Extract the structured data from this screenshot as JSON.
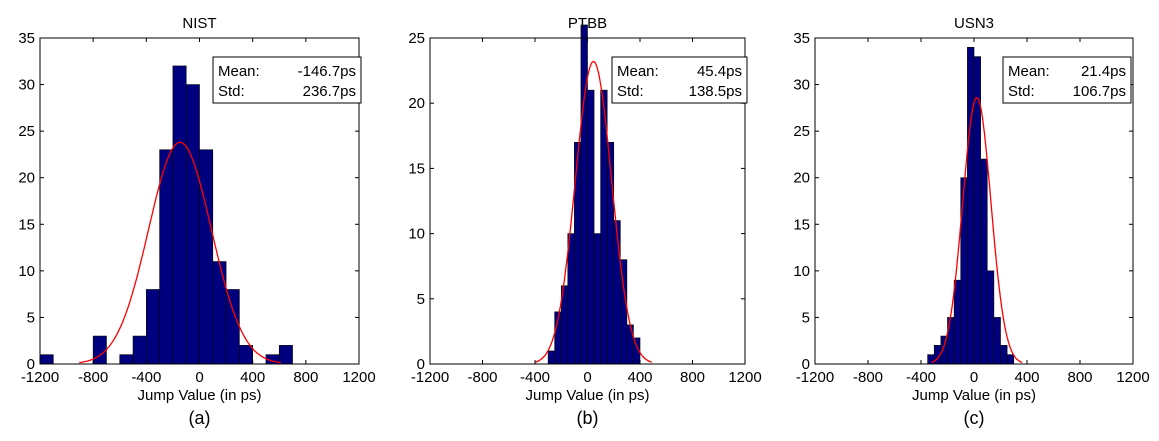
{
  "chart_data": [
    {
      "type": "bar",
      "title": "NIST",
      "xlabel": "Jump Value (in ps)",
      "ylabel": "",
      "panel_label": "(a)",
      "xlim": [
        -1200,
        1200
      ],
      "ylim": [
        0,
        35
      ],
      "xticks": [
        -1200,
        -800,
        -400,
        0,
        400,
        800,
        1200
      ],
      "yticks": [
        0,
        5,
        10,
        15,
        20,
        25,
        30,
        35
      ],
      "bin_edges": [
        -1200,
        -1100,
        -1000,
        -900,
        -800,
        -700,
        -600,
        -500,
        -400,
        -300,
        -200,
        -100,
        0,
        100,
        200,
        300,
        400,
        500,
        600,
        700,
        800,
        900,
        1000,
        1100,
        1200
      ],
      "values": [
        1,
        0,
        0,
        0,
        3,
        0,
        1,
        3,
        8,
        23,
        32,
        30,
        23,
        11,
        8,
        2,
        0,
        1,
        2,
        0,
        0,
        0,
        0,
        0
      ],
      "fit": {
        "mean": -146.7,
        "std": 236.7,
        "peak": 23.8
      },
      "stats": {
        "mean_label": "Mean:",
        "mean_value": "-146.7ps",
        "std_label": "Std:",
        "std_value": "236.7ps"
      },
      "grid": false,
      "colors": {
        "bar": "#00007f",
        "fit": "#ff0000"
      }
    },
    {
      "type": "bar",
      "title": "PTBB",
      "xlabel": "Jump Value (in ps)",
      "ylabel": "",
      "panel_label": "(b)",
      "xlim": [
        -1200,
        1200
      ],
      "ylim": [
        0,
        25
      ],
      "xticks": [
        -1200,
        -800,
        -400,
        0,
        400,
        800,
        1200
      ],
      "yticks": [
        0,
        5,
        10,
        15,
        20,
        25
      ],
      "bin_edges": [
        -300,
        -250,
        -200,
        -150,
        -100,
        -50,
        0,
        50,
        100,
        150,
        200,
        250,
        300,
        350,
        400
      ],
      "values": [
        1,
        4,
        6,
        10,
        17,
        26,
        21,
        10,
        21,
        17,
        11,
        8,
        3,
        2
      ],
      "fit": {
        "mean": 45.4,
        "std": 138.5,
        "peak": 23.2
      },
      "stats": {
        "mean_label": "Mean:",
        "mean_value": "45.4ps",
        "std_label": "Std:",
        "std_value": "138.5ps"
      },
      "grid": false,
      "colors": {
        "bar": "#00007f",
        "fit": "#ff0000"
      }
    },
    {
      "type": "bar",
      "title": "USN3",
      "xlabel": "Jump Value (in ps)",
      "ylabel": "",
      "panel_label": "(c)",
      "xlim": [
        -1200,
        1200
      ],
      "ylim": [
        0,
        35
      ],
      "xticks": [
        -1200,
        -800,
        -400,
        0,
        400,
        800,
        1200
      ],
      "yticks": [
        0,
        5,
        10,
        15,
        20,
        25,
        30,
        35
      ],
      "bin_edges": [
        -350,
        -300,
        -250,
        -200,
        -150,
        -100,
        -50,
        0,
        50,
        100,
        150,
        200,
        250,
        300
      ],
      "values": [
        1,
        2,
        3,
        5,
        9,
        20,
        34,
        33,
        22,
        10,
        5,
        2,
        1
      ],
      "fit": {
        "mean": 21.4,
        "std": 106.7,
        "peak": 28.6
      },
      "stats": {
        "mean_label": "Mean:",
        "mean_value": "21.4ps",
        "std_label": "Std:",
        "std_value": "106.7ps"
      },
      "grid": false,
      "colors": {
        "bar": "#00007f",
        "fit": "#ff0000"
      }
    }
  ]
}
